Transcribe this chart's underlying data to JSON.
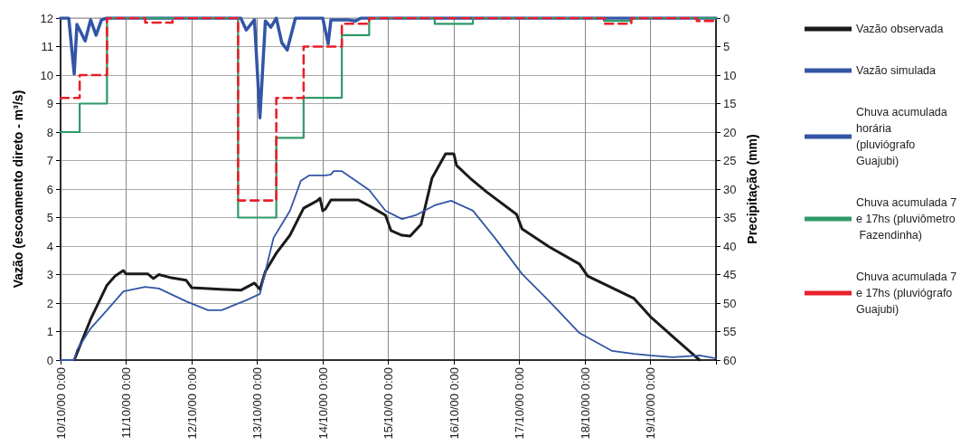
{
  "chart_data": {
    "type": "line",
    "ylabel": "Vazão (escoamento direto - m³/s)",
    "y2label": "Precipitação (mm)",
    "xlim": [
      "2000-10-10T00:00",
      "2000-10-20T00:00"
    ],
    "xticks": [
      {
        "value": "2000-10-10T00:00",
        "label": "10/10/00 0:00"
      },
      {
        "value": "2000-10-11T00:00",
        "label": "11/10/00 0:00"
      },
      {
        "value": "2000-10-12T00:00",
        "label": "12/10/00 0:00"
      },
      {
        "value": "2000-10-13T00:00",
        "label": "13/10/00 0:00"
      },
      {
        "value": "2000-10-14T00:00",
        "label": "14/10/00 0:00"
      },
      {
        "value": "2000-10-15T00:00",
        "label": "15/10/00 0:00"
      },
      {
        "value": "2000-10-16T00:00",
        "label": "16/10/00 0:00"
      },
      {
        "value": "2000-10-17T00:00",
        "label": "17/10/00 0:00"
      },
      {
        "value": "2000-10-18T00:00",
        "label": "18/10/00 0:00"
      },
      {
        "value": "2000-10-19T00:00",
        "label": "19/10/00 0:00"
      },
      {
        "value": "2000-10-20T00:00",
        "label": null
      }
    ],
    "ylim": [
      0,
      12
    ],
    "yticks": [
      0,
      1,
      2,
      3,
      4,
      5,
      6,
      7,
      8,
      9,
      10,
      11,
      12
    ],
    "y2lim": [
      60,
      0
    ],
    "y2ticks": [
      0,
      5,
      10,
      15,
      20,
      25,
      30,
      35,
      40,
      45,
      50,
      55,
      60
    ],
    "grid": true,
    "legend": "right",
    "marker": "none",
    "series": [
      {
        "name": "Vazão observada",
        "color": "#1a1a1a",
        "line_style": "solid",
        "x": [
          "2000-10-10T05:00",
          "2000-10-10T11:00",
          "2000-10-10T17:00",
          "2000-10-10T20:00",
          "2000-10-10T23:00",
          "2000-10-11T00:00",
          "2000-10-11T08:00",
          "2000-10-11T10:00",
          "2000-10-11T12:00",
          "2000-10-11T16:00",
          "2000-10-11T22:00",
          "2000-10-12T00:00",
          "2000-10-12T12:00",
          "2000-10-12T18:00",
          "2000-10-12T23:00",
          "2000-10-13T01:00",
          "2000-10-13T03:00",
          "2000-10-13T07:00",
          "2000-10-13T12:00",
          "2000-10-13T17:00",
          "2000-10-13T22:00",
          "2000-10-13T23:00",
          "2000-10-14T00:00",
          "2000-10-14T01:00",
          "2000-10-14T03:00",
          "2000-10-14T13:00",
          "2000-10-14T18:00",
          "2000-10-14T23:00",
          "2000-10-15T01:00",
          "2000-10-15T05:00",
          "2000-10-15T08:00",
          "2000-10-15T12:00",
          "2000-10-15T16:00",
          "2000-10-15T21:00",
          "2000-10-16T00:00",
          "2000-10-16T01:00",
          "2000-10-16T06:00",
          "2000-10-16T12:00",
          "2000-10-16T23:00",
          "2000-10-17T01:00",
          "2000-10-17T11:00",
          "2000-10-17T22:00",
          "2000-10-18T01:00",
          "2000-10-18T18:00",
          "2000-10-19T00:00",
          "2000-10-19T10:00",
          "2000-10-19T18:00"
        ],
        "values": [
          0,
          1.43,
          2.63,
          2.95,
          3.14,
          3.02,
          3.02,
          2.86,
          3.0,
          2.9,
          2.8,
          2.54,
          2.48,
          2.45,
          2.7,
          2.48,
          3.11,
          3.75,
          4.38,
          5.33,
          5.59,
          5.68,
          5.24,
          5.3,
          5.62,
          5.62,
          5.36,
          5.08,
          4.54,
          4.38,
          4.35,
          4.76,
          6.38,
          7.24,
          7.24,
          6.83,
          6.38,
          5.9,
          5.11,
          4.6,
          3.97,
          3.37,
          2.95,
          2.16,
          1.52,
          0.67,
          0
        ]
      },
      {
        "name": "Vazão simulada",
        "color": "#3355a5",
        "line_style": "solid",
        "x": [
          "2000-10-10T00:00",
          "2000-10-10T05:00",
          "2000-10-10T06:00",
          "2000-10-10T11:00",
          "2000-10-10T17:00",
          "2000-10-10T23:00",
          "2000-10-11T07:00",
          "2000-10-11T12:00",
          "2000-10-11T22:00",
          "2000-10-12T06:00",
          "2000-10-12T11:00",
          "2000-10-12T20:00",
          "2000-10-13T01:00",
          "2000-10-13T03:00",
          "2000-10-13T06:00",
          "2000-10-13T12:00",
          "2000-10-13T16:00",
          "2000-10-13T19:00",
          "2000-10-14T01:00",
          "2000-10-14T03:00",
          "2000-10-14T04:00",
          "2000-10-14T07:00",
          "2000-10-14T17:00",
          "2000-10-14T23:00",
          "2000-10-15T05:00",
          "2000-10-15T10:00",
          "2000-10-15T17:00",
          "2000-10-15T23:00",
          "2000-10-16T07:00",
          "2000-10-16T15:00",
          "2000-10-17T01:00",
          "2000-10-17T11:00",
          "2000-10-17T22:00",
          "2000-10-18T10:00",
          "2000-10-18T18:00",
          "2000-10-19T00:00",
          "2000-10-19T08:00",
          "2000-10-19T18:00",
          "2000-10-20T00:00"
        ],
        "values": [
          0,
          0,
          0.35,
          1.11,
          1.75,
          2.41,
          2.57,
          2.51,
          2.06,
          1.75,
          1.75,
          2.1,
          2.32,
          3.11,
          4.29,
          5.24,
          6.29,
          6.48,
          6.48,
          6.51,
          6.63,
          6.63,
          5.97,
          5.24,
          4.95,
          5.08,
          5.43,
          5.59,
          5.24,
          4.29,
          3.02,
          2.06,
          0.95,
          0.32,
          0.22,
          0.16,
          0.1,
          0.16,
          0.06
        ]
      },
      {
        "name": "Chuva acumulada horária (pluviógrafo Guajubi)",
        "axis": "y2",
        "color": "#3355a5",
        "line_style": "solid",
        "x": [
          "2000-10-10T00:00",
          "2000-10-10T03:00",
          "2000-10-10T05:00",
          "2000-10-10T06:00",
          "2000-10-10T09:00",
          "2000-10-10T11:00",
          "2000-10-10T13:00",
          "2000-10-10T15:00",
          "2000-10-10T17:00",
          "2000-10-12T18:00",
          "2000-10-12T20:00",
          "2000-10-12T23:00",
          "2000-10-13T01:00",
          "2000-10-13T03:00",
          "2000-10-13T05:00",
          "2000-10-13T07:00",
          "2000-10-13T09:00",
          "2000-10-13T11:00",
          "2000-10-13T12:00",
          "2000-10-13T14:00",
          "2000-10-14T00:00",
          "2000-10-14T02:00",
          "2000-10-14T03:00",
          "2000-10-14T09:00",
          "2000-10-14T12:00",
          "2000-10-14T14:00",
          "2000-10-20T00:00"
        ],
        "values": [
          0,
          0,
          9.8,
          1.1,
          4.0,
          0.3,
          3.0,
          0.3,
          0,
          0,
          2.1,
          0.3,
          17.5,
          0.5,
          1.6,
          0,
          4.3,
          5.6,
          3.7,
          0,
          0,
          4.5,
          0.3,
          0.3,
          0.5,
          0,
          0
        ]
      },
      {
        "name": "Chuva acumulada 7 e 17hs (pluviômetro Fazendinha)",
        "type": "step",
        "axis": "y2",
        "color": "#2e9a68",
        "line_style": "solid",
        "x": [
          "2000-10-10T00:00",
          "2000-10-10T07:00",
          "2000-10-10T17:00",
          "2000-10-12T17:00",
          "2000-10-13T07:00",
          "2000-10-13T17:00",
          "2000-10-14T07:00",
          "2000-10-14T17:00",
          "2000-10-15T17:00",
          "2000-10-16T07:00",
          "2000-10-18T07:00",
          "2000-10-18T17:00",
          "2000-10-20T00:00"
        ],
        "values": [
          20,
          15,
          0,
          35,
          21,
          14,
          3,
          0,
          1,
          0,
          0.5,
          0,
          0
        ]
      },
      {
        "name": "Chuva acumulada 7 e 17hs (pluviógrafo Guajubi)",
        "type": "step",
        "axis": "y2",
        "color": "#e8202a",
        "line_style": "dashed",
        "x": [
          "2000-10-10T00:00",
          "2000-10-10T07:00",
          "2000-10-10T17:00",
          "2000-10-11T07:00",
          "2000-10-11T17:00",
          "2000-10-12T17:00",
          "2000-10-13T07:00",
          "2000-10-13T17:00",
          "2000-10-14T07:00",
          "2000-10-14T17:00",
          "2000-10-18T07:00",
          "2000-10-18T17:00",
          "2000-10-19T17:00",
          "2000-10-20T00:00"
        ],
        "values": [
          14,
          10,
          0,
          0.8,
          0,
          32,
          14,
          5,
          1,
          0,
          1,
          0,
          0.5,
          0.5
        ]
      }
    ]
  }
}
